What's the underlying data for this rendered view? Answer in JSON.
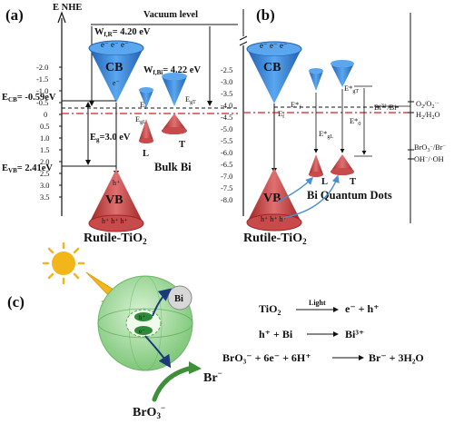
{
  "panel_a": {
    "label": "(a)",
    "axis_label": "E NHE",
    "ticks": [
      "-2.0",
      "-1.5",
      "-1.0",
      "-0.5",
      "0",
      "0.5",
      "1.0",
      "1.5",
      "2.0",
      "2.5",
      "3.0",
      "3.5"
    ],
    "vacuum_level": "Vacuum level",
    "wf_r": "Wₐ",
    "wf_r_label": "Wf,R= 4.20 eV",
    "wf_bi_label": "Wf,Bi= 4.22 eV",
    "ecb": "ECB= -0.59eV",
    "evb": "EVB= 2.41eV",
    "eg": "Eg=3.0 eV",
    "ef": "Ef",
    "egl": "EgL",
    "egt": "EgT",
    "cb": "CB",
    "vb": "VB",
    "electrons": "e⁻ e⁻ e⁻",
    "holes": "h⁺ h⁺ h⁺",
    "hole": "h⁺",
    "electron": "e⁻",
    "L": "L",
    "T": "T",
    "bulk_bi": "Bulk Bi",
    "rutile": "Rutile-TiO",
    "sub2": "2"
  },
  "panel_b": {
    "label": "(b)",
    "ticks": [
      "-2.5",
      "-3.0",
      "-3.5",
      "-4.0",
      "-4.5",
      "-5.0",
      "-5.5",
      "-6.0",
      "-6.5",
      "-7.0",
      "-7.5",
      "-8.0"
    ],
    "ef": "Ef",
    "ef_star": "E*f",
    "egl_star": "E*gL",
    "egt_star": "E*gT",
    "e0_star": "E*0",
    "cb": "CB",
    "vb": "VB",
    "L": "L",
    "T": "T",
    "bi_redox": "Bi3+/Bi",
    "o2_redox": "O2/O2·⁻",
    "h2_redox": "H2/H2O",
    "bro3_redox": "BrO3⁻/Br⁻",
    "oh_redox": "OH⁻/·OH",
    "qd": "Bi Quantum Dots",
    "rutile": "Rutile-TiO",
    "sub2": "2"
  },
  "panel_c": {
    "label": "(c)",
    "bi": "Bi",
    "br": "Br",
    "bro3": "BrO",
    "h": "h⁺",
    "e": "e⁻",
    "eq1_left": "TiO",
    "eq1_light": "Light",
    "eq1_right": "e⁻ + h⁺",
    "eq2_left": "h⁺ + Bi",
    "eq2_right": "Bi³⁺",
    "eq3_left": "BrO₃⁻ + 6e⁻ + 6H⁺",
    "eq3_right": "Br⁻ + 3H₂O"
  },
  "colors": {
    "cone_blue": "#2f7fd6",
    "cone_red": "#c43c3c",
    "sphere_green": "#8fd28a",
    "arrow_blue": "#1b3a7a",
    "dash_red": "#d42020",
    "sun": "#f2b51a"
  }
}
